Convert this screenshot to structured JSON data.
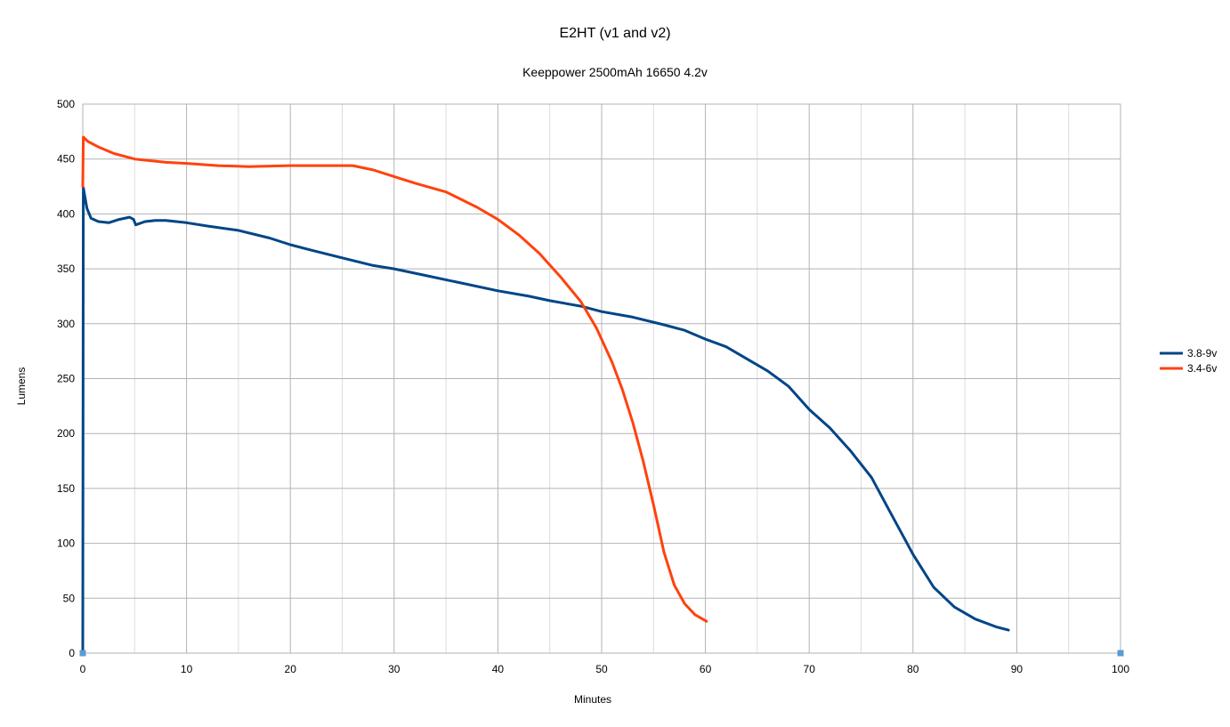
{
  "chart_data": {
    "type": "line",
    "title": "E2HT (v1 and v2)",
    "subtitle": "Keeppower 2500mAh 16650 4.2v",
    "xlabel": "Minutes",
    "ylabel": "Lumens",
    "xlim": [
      0,
      100
    ],
    "ylim": [
      0,
      500
    ],
    "x_ticks": [
      0,
      10,
      20,
      30,
      40,
      50,
      60,
      70,
      80,
      90,
      100
    ],
    "y_ticks": [
      0,
      50,
      100,
      150,
      200,
      250,
      300,
      350,
      400,
      450,
      500
    ],
    "grid": true,
    "legend_position": "right",
    "series": [
      {
        "name": "3.8-9v",
        "color": "#004586",
        "points": [
          [
            0,
            0
          ],
          [
            0.05,
            424
          ],
          [
            0.4,
            405
          ],
          [
            0.8,
            396
          ],
          [
            1.5,
            393
          ],
          [
            2.5,
            392
          ],
          [
            3.5,
            395
          ],
          [
            4.5,
            397
          ],
          [
            4.9,
            395
          ],
          [
            5.1,
            390
          ],
          [
            6,
            393
          ],
          [
            7,
            394
          ],
          [
            8,
            394
          ],
          [
            10,
            392
          ],
          [
            12,
            389
          ],
          [
            15,
            385
          ],
          [
            18,
            378
          ],
          [
            20,
            372
          ],
          [
            22,
            367
          ],
          [
            25,
            360
          ],
          [
            28,
            353
          ],
          [
            30,
            350
          ],
          [
            33,
            344
          ],
          [
            36,
            338
          ],
          [
            40,
            330
          ],
          [
            43,
            325
          ],
          [
            45,
            321
          ],
          [
            48,
            316
          ],
          [
            50,
            311
          ],
          [
            53,
            306
          ],
          [
            56,
            299
          ],
          [
            58,
            294
          ],
          [
            60,
            286
          ],
          [
            62,
            279
          ],
          [
            64,
            268
          ],
          [
            66,
            257
          ],
          [
            68,
            243
          ],
          [
            70,
            222
          ],
          [
            72,
            205
          ],
          [
            74,
            184
          ],
          [
            76,
            160
          ],
          [
            78,
            125
          ],
          [
            80,
            90
          ],
          [
            82,
            60
          ],
          [
            84,
            42
          ],
          [
            86,
            31
          ],
          [
            88,
            24
          ],
          [
            89.2,
            21
          ]
        ]
      },
      {
        "name": "3.4-6v",
        "color": "#ff420e",
        "points": [
          [
            0,
            425
          ],
          [
            0.05,
            470
          ],
          [
            0.5,
            466
          ],
          [
            1.5,
            461
          ],
          [
            3,
            455
          ],
          [
            5,
            450
          ],
          [
            8,
            447
          ],
          [
            10,
            446
          ],
          [
            13,
            444
          ],
          [
            16,
            443
          ],
          [
            20,
            444
          ],
          [
            23,
            444
          ],
          [
            26,
            444
          ],
          [
            28,
            440
          ],
          [
            30,
            434
          ],
          [
            32,
            428
          ],
          [
            35,
            420
          ],
          [
            38,
            406
          ],
          [
            40,
            395
          ],
          [
            42,
            381
          ],
          [
            44,
            364
          ],
          [
            46,
            343
          ],
          [
            48,
            320
          ],
          [
            49.5,
            296
          ],
          [
            51,
            265
          ],
          [
            52,
            240
          ],
          [
            53,
            210
          ],
          [
            54,
            175
          ],
          [
            55,
            135
          ],
          [
            56,
            92
          ],
          [
            57,
            62
          ],
          [
            58,
            45
          ],
          [
            59,
            35
          ],
          [
            60.1,
            29
          ]
        ]
      },
      {
        "name": "",
        "color": "#5b9bd5",
        "points": [
          [
            0,
            0
          ],
          [
            100,
            0
          ]
        ]
      }
    ]
  }
}
